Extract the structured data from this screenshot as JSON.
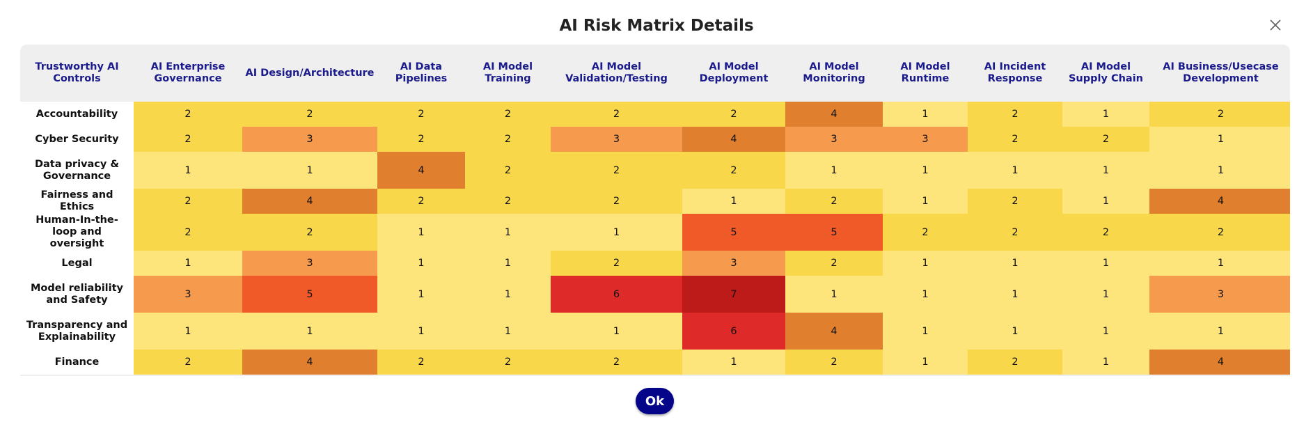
{
  "modal": {
    "title": "AI Risk Matrix Details",
    "ok_label": "Ok",
    "close_icon": "close-icon"
  },
  "matrix": {
    "corner_header": "Trustworthy AI Controls",
    "columns": [
      "AI Enterprise Governance",
      "AI Design/Architecture",
      "AI Data Pipelines",
      "AI Model Training",
      "AI Model Validation/Testing",
      "AI Model Deployment",
      "AI Model Monitoring",
      "AI Model Runtime",
      "AI Incident Response",
      "AI Model Supply Chain",
      "AI Business/Usecase Development"
    ],
    "rows": [
      {
        "label": "Accountability",
        "values": [
          2,
          2,
          2,
          2,
          2,
          2,
          4,
          1,
          2,
          1,
          2
        ]
      },
      {
        "label": "Cyber Security",
        "values": [
          2,
          3,
          2,
          2,
          3,
          4,
          3,
          3,
          2,
          2,
          1
        ]
      },
      {
        "label": "Data privacy & Governance",
        "values": [
          1,
          1,
          4,
          2,
          2,
          2,
          1,
          1,
          1,
          1,
          1
        ]
      },
      {
        "label": "Fairness and Ethics",
        "values": [
          2,
          4,
          2,
          2,
          2,
          1,
          2,
          1,
          2,
          1,
          4
        ]
      },
      {
        "label": "Human-In-the-loop and oversight",
        "values": [
          2,
          2,
          1,
          1,
          1,
          5,
          5,
          2,
          2,
          2,
          2
        ]
      },
      {
        "label": "Legal",
        "values": [
          1,
          3,
          1,
          1,
          2,
          3,
          2,
          1,
          1,
          1,
          1
        ]
      },
      {
        "label": "Model reliability and Safety",
        "values": [
          3,
          5,
          1,
          1,
          6,
          7,
          1,
          1,
          1,
          1,
          3
        ]
      },
      {
        "label": "Transparency and Explainability",
        "values": [
          1,
          1,
          1,
          1,
          1,
          6,
          4,
          1,
          1,
          1,
          1
        ]
      },
      {
        "label": "Finance",
        "values": [
          2,
          4,
          2,
          2,
          2,
          1,
          2,
          1,
          2,
          1,
          4
        ]
      }
    ]
  },
  "colors": {
    "1": "#fde57b",
    "2": "#f8d84a",
    "3": "#f69b4d",
    "4": "#e0802f",
    "5": "#f05a28",
    "6": "#df2a2a",
    "7": "#bd1a1a",
    "header_text": "#1b1b8c",
    "ok_button": "#05058a"
  }
}
